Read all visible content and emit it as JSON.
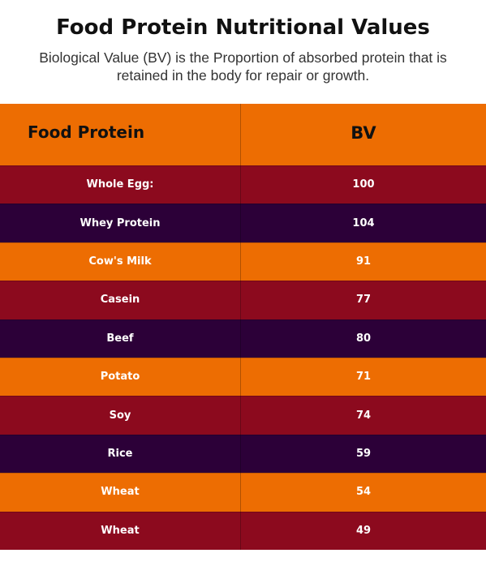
{
  "title": "Food Protein Nutritional Values",
  "subtitle": "Biological Value (BV) is the Proportion of absorbed protein that is retained in the body for repair or growth.",
  "colors": {
    "header": "#ED6D02",
    "red": "#8C0A1E",
    "purple": "#2C0038",
    "orange": "#ED6D02"
  },
  "chart_data": {
    "type": "table",
    "title": "Food Protein Nutritional Values",
    "subtitle": "Biological Value (BV) is the Proportion of absorbed protein that is retained in the body for repair or growth.",
    "columns": [
      "Food Protein",
      "BV"
    ],
    "rows": [
      {
        "food": "Whole Egg:",
        "bv": "100",
        "color": "#8C0A1E"
      },
      {
        "food": "Whey Protein",
        "bv": "104",
        "color": "#2C0038"
      },
      {
        "food": "Cow's Milk",
        "bv": "91",
        "color": "#ED6D02"
      },
      {
        "food": "Casein",
        "bv": "77",
        "color": "#8C0A1E"
      },
      {
        "food": "Beef",
        "bv": "80",
        "color": "#2C0038"
      },
      {
        "food": "Potato",
        "bv": "71",
        "color": "#ED6D02"
      },
      {
        "food": "Soy",
        "bv": "74",
        "color": "#8C0A1E"
      },
      {
        "food": "Rice",
        "bv": "59",
        "color": "#2C0038"
      },
      {
        "food": "Wheat",
        "bv": "54",
        "color": "#ED6D02"
      },
      {
        "food": "Wheat",
        "bv": "49",
        "color": "#8C0A1E"
      }
    ]
  }
}
